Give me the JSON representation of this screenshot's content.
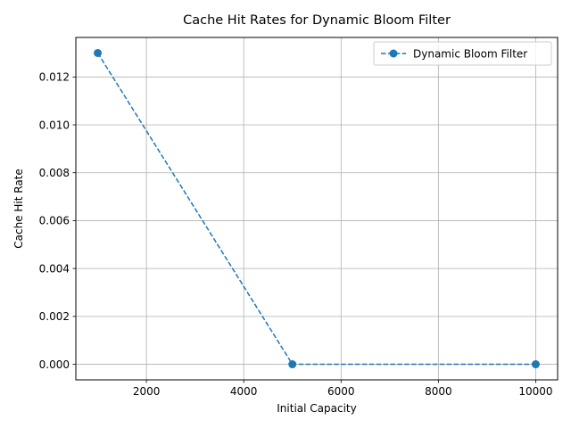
{
  "chart_data": {
    "type": "line",
    "title": "Cache Hit Rates for Dynamic Bloom Filter",
    "xlabel": "Initial Capacity",
    "ylabel": "Cache Hit Rate",
    "xlim": [
      550,
      10450
    ],
    "ylim": [
      -0.00065,
      0.01365
    ],
    "xticks": [
      2000,
      4000,
      6000,
      8000,
      10000
    ],
    "yticks": [
      0.0,
      0.002,
      0.004,
      0.006,
      0.008,
      0.01,
      0.012
    ],
    "xtick_labels": [
      "2000",
      "4000",
      "6000",
      "8000",
      "10000"
    ],
    "ytick_labels": [
      "0.000",
      "0.002",
      "0.004",
      "0.006",
      "0.008",
      "0.010",
      "0.012"
    ],
    "grid": true,
    "legend_position": "upper-right",
    "series": [
      {
        "name": "Dynamic Bloom Filter",
        "color": "#1f77b4",
        "line_style": "dashed",
        "marker": "circle",
        "x": [
          1000,
          5000,
          10000
        ],
        "y": [
          0.013,
          0.0,
          0.0
        ]
      }
    ]
  }
}
